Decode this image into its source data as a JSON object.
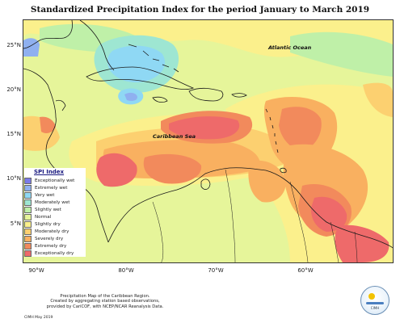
{
  "title": "Standardized Precipitation Index for the period January to March 2019",
  "map": {
    "y_ticks": [
      "25°N",
      "20°N",
      "15°N",
      "10°N",
      "5°N"
    ],
    "x_ticks": [
      "90°W",
      "80°W",
      "70°W",
      "60°W"
    ],
    "labels": {
      "atlantic": "Atlantic Ocean",
      "caribbean": "Caribbean Sea"
    }
  },
  "legend": {
    "title": "SPI Index",
    "items": [
      {
        "label": "Exceptionally wet",
        "color": "#7b7be8"
      },
      {
        "label": "Extremely wet",
        "color": "#8fb0f0"
      },
      {
        "label": "Very wet",
        "color": "#8fd8f4"
      },
      {
        "label": "Moderately wet",
        "color": "#9ee6d2"
      },
      {
        "label": "Slightly wet",
        "color": "#bff0a8"
      },
      {
        "label": "Normal",
        "color": "#e6f59a"
      },
      {
        "label": "Slightly dry",
        "color": "#fbf08c"
      },
      {
        "label": "Moderately dry",
        "color": "#fcd070"
      },
      {
        "label": "Severely dry",
        "color": "#f9b060"
      },
      {
        "label": "Extremely dry",
        "color": "#f28a5c"
      },
      {
        "label": "Exceptionally dry",
        "color": "#ee6a6a"
      }
    ]
  },
  "credit": {
    "line1": "Precipitation Map of the Caribbean Region.",
    "line2": "Created by aggregating station based observations,",
    "line3": "provided by CariCOF, with NCEP/NCAR Reanalysis Data.",
    "stamp": "CIMH May 2019"
  },
  "logo_text": "CIMH"
}
